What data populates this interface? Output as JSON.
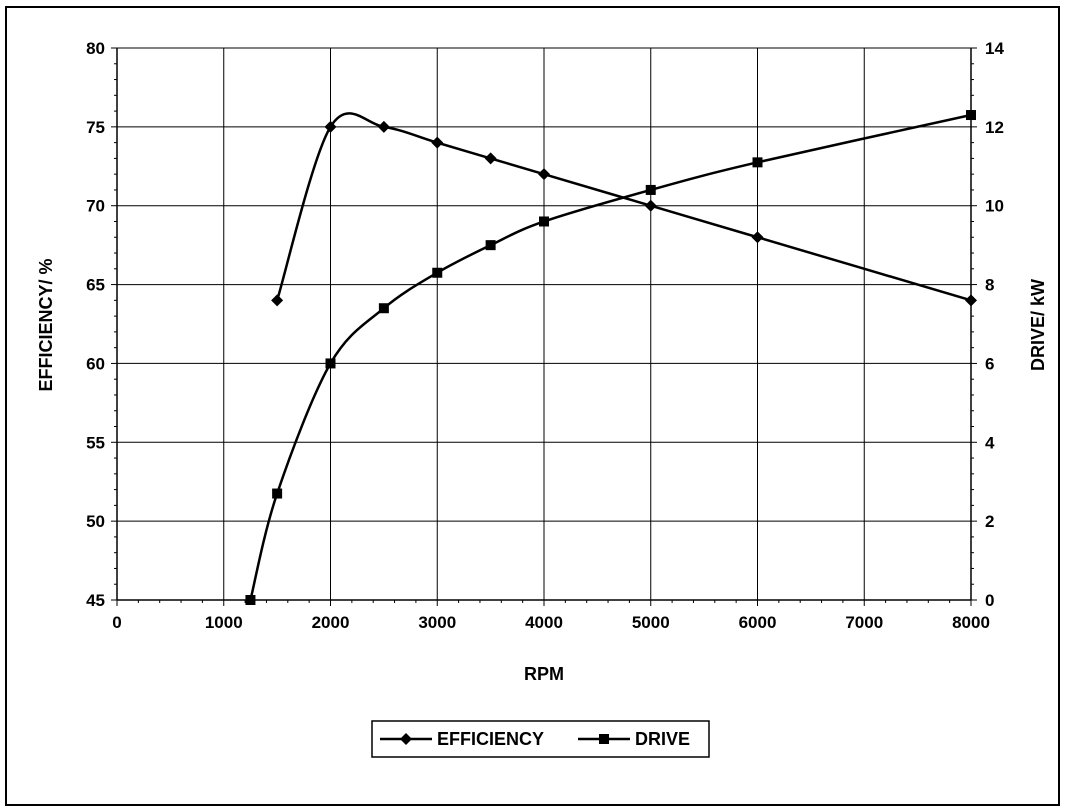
{
  "chart_data": {
    "type": "line",
    "title": "",
    "xlabel": "RPM",
    "ylabel_left": "EFFICIENCY/ %",
    "ylabel_right": "DRIVE/ kW",
    "xlim": [
      0,
      8000
    ],
    "ylim_left": [
      45,
      80
    ],
    "ylim_right": [
      0,
      14
    ],
    "x_ticks": [
      "0",
      "1000",
      "2000",
      "3000",
      "4000",
      "5000",
      "6000",
      "7000",
      "8000"
    ],
    "y_left_ticks": [
      "45",
      "50",
      "55",
      "60",
      "65",
      "70",
      "75",
      "80"
    ],
    "y_right_ticks": [
      "0",
      "2",
      "4",
      "6",
      "8",
      "10",
      "12",
      "14"
    ],
    "grid": true,
    "legend_position": "bottom",
    "series": [
      {
        "name": "EFFICIENCY",
        "axis": "left",
        "marker": "diamond",
        "color": "#000000",
        "x": [
          1500,
          2000,
          2500,
          3000,
          3500,
          4000,
          5000,
          6000,
          8000
        ],
        "y": [
          64,
          75,
          75,
          74,
          73,
          72,
          70,
          68,
          64
        ]
      },
      {
        "name": "DRIVE",
        "axis": "right",
        "marker": "square",
        "color": "#000000",
        "x": [
          1250,
          1500,
          2000,
          2500,
          3000,
          3500,
          4000,
          5000,
          6000,
          8000
        ],
        "y": [
          0,
          2.7,
          6.0,
          7.4,
          8.3,
          9.0,
          9.6,
          10.4,
          11.1,
          12.3
        ]
      }
    ]
  }
}
